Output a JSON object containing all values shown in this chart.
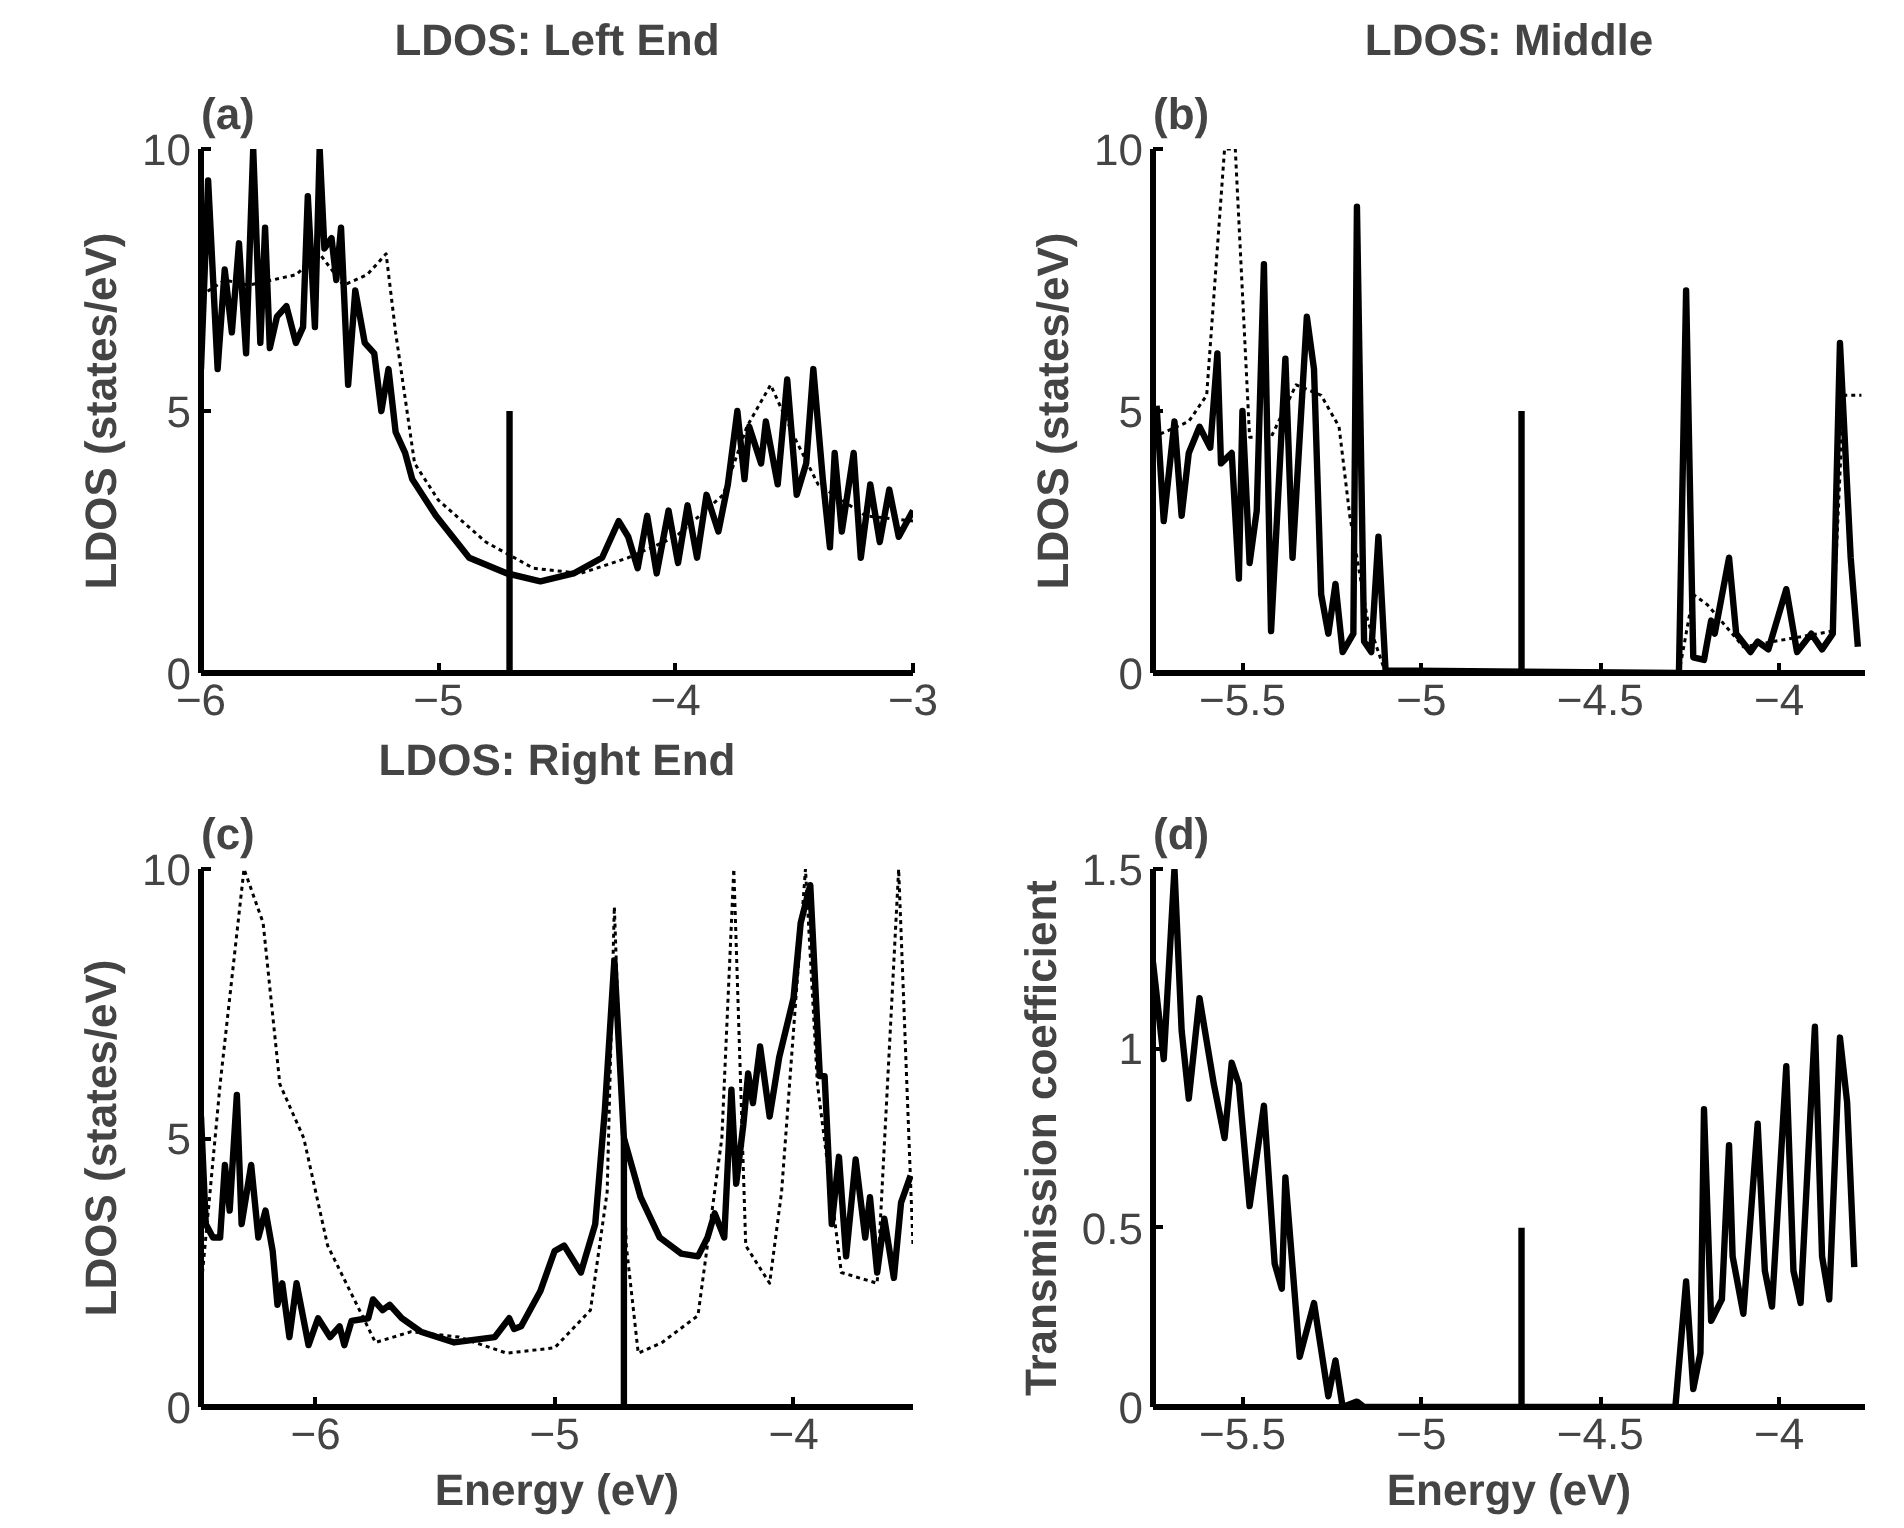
{
  "chart_data": [
    {
      "type": "line",
      "title": "LDOS: Left End",
      "annotations": [
        "(a)"
      ],
      "ylabel": "LDOS (states/eV)",
      "xlim": [
        -6,
        -3
      ],
      "ylim": [
        0,
        10
      ],
      "xticks": [
        -6,
        -5,
        -4,
        -3
      ],
      "yticks": [
        0,
        5,
        10
      ],
      "grid": false,
      "series": [
        {
          "color": "#000000",
          "line_style": "dotted",
          "x": [
            -6,
            -5.9,
            -5.8,
            -5.7,
            -5.6,
            -5.5,
            -5.4,
            -5.3,
            -5.22,
            -5.18,
            -5.1,
            -5.0,
            -4.8,
            -4.6,
            -4.4,
            -4.2,
            -4.0,
            -3.8,
            -3.7,
            -3.6,
            -3.5,
            -3.4,
            -3.2,
            -3.0
          ],
          "values": [
            7.2,
            7.5,
            7.4,
            7.5,
            7.6,
            8.0,
            7.4,
            7.6,
            8.0,
            6.5,
            4.0,
            3.3,
            2.5,
            2.0,
            1.9,
            2.2,
            2.6,
            3.4,
            4.7,
            5.5,
            4.5,
            3.6,
            3.0,
            2.9
          ]
        },
        {
          "color": "#000000",
          "line_style": "solid",
          "x": [
            -6,
            -5.97,
            -5.93,
            -5.9,
            -5.87,
            -5.84,
            -5.81,
            -5.78,
            -5.75,
            -5.73,
            -5.71,
            -5.68,
            -5.64,
            -5.6,
            -5.57,
            -5.55,
            -5.52,
            -5.5,
            -5.48,
            -5.45,
            -5.43,
            -5.41,
            -5.38,
            -5.35,
            -5.31,
            -5.27,
            -5.24,
            -5.21,
            -5.18,
            -5.14,
            -5.11,
            -5.01,
            -4.87,
            -4.71,
            -4.57,
            -4.43,
            -4.31,
            -4.24,
            -4.2,
            -4.16,
            -4.12,
            -4.08,
            -4.03,
            -3.99,
            -3.95,
            -3.91,
            -3.87,
            -3.82,
            -3.78,
            -3.74,
            -3.71,
            -3.69,
            -3.64,
            -3.62,
            -3.57,
            -3.53,
            -3.49,
            -3.45,
            -3.42,
            -3.38,
            -3.35,
            -3.33,
            -3.3,
            -3.25,
            -3.22,
            -3.18,
            -3.14,
            -3.1,
            -3.06,
            -3.0
          ],
          "values": [
            5.8,
            9.4,
            5.8,
            7.7,
            6.5,
            8.2,
            6.1,
            10,
            6.3,
            8.5,
            6.2,
            6.8,
            7.0,
            6.3,
            6.6,
            9.1,
            6.6,
            10,
            8.1,
            8.3,
            7.5,
            8.5,
            5.5,
            7.3,
            6.3,
            6.1,
            5.0,
            5.8,
            4.6,
            4.2,
            3.7,
            3.0,
            2.2,
            1.9,
            1.75,
            1.9,
            2.2,
            2.9,
            2.6,
            2.0,
            3.0,
            1.9,
            3.1,
            2.1,
            3.2,
            2.2,
            3.4,
            2.7,
            3.6,
            5.0,
            3.7,
            4.7,
            4.0,
            4.8,
            3.6,
            5.6,
            3.4,
            4.0,
            5.8,
            3.7,
            2.4,
            4.2,
            2.7,
            4.2,
            2.2,
            3.6,
            2.5,
            3.5,
            2.6,
            3.1
          ]
        },
        {
          "color": "#000000",
          "line_style": "solid",
          "x": [
            -4.7,
            -4.7
          ],
          "values": [
            0,
            5
          ]
        }
      ]
    },
    {
      "type": "line",
      "title": "LDOS: Middle",
      "annotations": [
        "(b)"
      ],
      "ylabel": "LDOS (states/eV)",
      "xlim": [
        -5.75,
        -3.76
      ],
      "ylim": [
        0,
        10
      ],
      "xticks": [
        -5.5,
        -5,
        -4.5,
        -4
      ],
      "yticks": [
        0,
        5,
        10
      ],
      "grid": false,
      "series": [
        {
          "color": "#000000",
          "line_style": "dotted",
          "x": [
            -5.75,
            -5.65,
            -5.6,
            -5.55,
            -5.52,
            -5.48,
            -5.42,
            -5.35,
            -5.28,
            -5.23,
            -5.2,
            -5.15,
            -5.1,
            -4.28,
            -4.24,
            -4.2,
            -4.1,
            -3.85,
            -3.82,
            -3.77
          ],
          "values": [
            4.5,
            4.8,
            5.3,
            10,
            10,
            4.5,
            4.5,
            5.5,
            5.3,
            4.7,
            3,
            1,
            0,
            0,
            1.5,
            1.3,
            0.5,
            0.8,
            5.3,
            5.3
          ]
        },
        {
          "color": "#000000",
          "line_style": "solid",
          "x": [
            -5.74,
            -5.72,
            -5.69,
            -5.67,
            -5.65,
            -5.62,
            -5.59,
            -5.57,
            -5.56,
            -5.53,
            -5.51,
            -5.5,
            -5.48,
            -5.46,
            -5.44,
            -5.42,
            -5.38,
            -5.36,
            -5.32,
            -5.3,
            -5.28,
            -5.26,
            -5.24,
            -5.22,
            -5.19,
            -5.18,
            -5.16,
            -5.14,
            -5.12,
            -5.1,
            -4.28,
            -4.26,
            -4.24,
            -4.21,
            -4.19,
            -4.18,
            -4.14,
            -4.12,
            -4.08,
            -4.06,
            -4.03,
            -3.98,
            -3.95,
            -3.91,
            -3.88,
            -3.85,
            -3.83,
            -3.8,
            -3.78
          ],
          "values": [
            5.1,
            2.9,
            4.8,
            3.0,
            4.2,
            4.7,
            4.3,
            6.1,
            4.0,
            4.2,
            1.8,
            5.0,
            2.1,
            3.1,
            7.8,
            0.8,
            6.0,
            2.2,
            6.8,
            5.8,
            1.5,
            0.75,
            1.7,
            0.4,
            0.75,
            8.9,
            0.6,
            0.4,
            2.6,
            0.05,
            0,
            7.3,
            0.3,
            0.25,
            1.0,
            0.75,
            2.2,
            0.75,
            0.4,
            0.6,
            0.45,
            1.6,
            0.4,
            0.75,
            0.45,
            0.75,
            6.3,
            2.2,
            0.5
          ]
        },
        {
          "color": "#000000",
          "line_style": "solid",
          "x": [
            -4.72,
            -4.72
          ],
          "values": [
            0,
            5
          ]
        }
      ]
    },
    {
      "type": "line",
      "title": "LDOS: Right End",
      "annotations": [
        "(c)"
      ],
      "xlabel": "Energy (eV)",
      "ylabel": "LDOS (states/eV)",
      "xlim": [
        -6.48,
        -3.5
      ],
      "ylim": [
        0,
        10
      ],
      "xticks": [
        -6,
        -5,
        -4
      ],
      "yticks": [
        0,
        5,
        10
      ],
      "grid": false,
      "series": [
        {
          "color": "#000000",
          "line_style": "dotted",
          "x": [
            -6.48,
            -6.4,
            -6.3,
            -6.22,
            -6.15,
            -6.05,
            -5.95,
            -5.85,
            -5.75,
            -5.6,
            -5.4,
            -5.2,
            -5.0,
            -4.85,
            -4.78,
            -4.75,
            -4.7,
            -4.65,
            -4.55,
            -4.4,
            -4.3,
            -4.25,
            -4.2,
            -4.1,
            -4.05,
            -3.95,
            -3.9,
            -3.8,
            -3.65,
            -3.56,
            -3.5
          ],
          "values": [
            2.2,
            6,
            10,
            9,
            6,
            5,
            3,
            2.1,
            1.2,
            1.4,
            1.3,
            1.0,
            1.1,
            1.8,
            4,
            9.3,
            3,
            1.0,
            1.2,
            1.7,
            5,
            10,
            3,
            2.3,
            4,
            10,
            6,
            2.5,
            2.3,
            10,
            3
          ]
        },
        {
          "color": "#000000",
          "line_style": "solid",
          "x": [
            -6.48,
            -6.46,
            -6.43,
            -6.4,
            -6.38,
            -6.36,
            -6.33,
            -6.31,
            -6.27,
            -6.24,
            -6.21,
            -6.18,
            -6.16,
            -6.14,
            -6.11,
            -6.08,
            -6.03,
            -5.99,
            -5.94,
            -5.9,
            -5.88,
            -5.85,
            -5.78,
            -5.76,
            -5.72,
            -5.69,
            -5.64,
            -5.56,
            -5.42,
            -5.25,
            -5.19,
            -5.17,
            -5.14,
            -5.06,
            -5.0,
            -4.96,
            -4.89,
            -4.83,
            -4.79,
            -4.75,
            -4.71,
            -4.64,
            -4.56,
            -4.47,
            -4.4,
            -4.36,
            -4.33,
            -4.29,
            -4.26,
            -4.24,
            -4.21,
            -4.19,
            -4.17,
            -4.14,
            -4.1,
            -4.06,
            -4.0,
            -3.97,
            -3.93,
            -3.89,
            -3.87,
            -3.84,
            -3.81,
            -3.78,
            -3.74,
            -3.7,
            -3.68,
            -3.65,
            -3.62,
            -3.58,
            -3.55,
            -3.51
          ],
          "values": [
            5.4,
            3.4,
            3.15,
            3.15,
            4.5,
            3.65,
            5.8,
            3.4,
            4.5,
            3.15,
            3.65,
            2.9,
            1.9,
            2.3,
            1.3,
            2.3,
            1.15,
            1.65,
            1.3,
            1.5,
            1.15,
            1.6,
            1.65,
            2.0,
            1.8,
            1.9,
            1.65,
            1.4,
            1.2,
            1.3,
            1.65,
            1.45,
            1.5,
            2.15,
            2.9,
            3.0,
            2.5,
            3.4,
            5.5,
            8.3,
            5.0,
            3.9,
            3.15,
            2.85,
            2.8,
            3.15,
            3.6,
            3.15,
            5.9,
            4.15,
            5.25,
            6.2,
            5.65,
            6.7,
            5.4,
            6.5,
            7.6,
            9.0,
            9.7,
            6.15,
            6.15,
            3.4,
            4.65,
            2.8,
            4.6,
            3.15,
            3.9,
            2.5,
            3.5,
            2.4,
            3.8,
            4.3
          ]
        },
        {
          "color": "#000000",
          "line_style": "solid",
          "x": [
            -4.71,
            -4.71
          ],
          "values": [
            0,
            5
          ]
        }
      ]
    },
    {
      "type": "line",
      "annotations": [
        "(d)"
      ],
      "xlabel": "Energy (eV)",
      "ylabel": "Transmission coefficient",
      "xlim": [
        -5.75,
        -3.76
      ],
      "ylim": [
        0,
        1.5
      ],
      "xticks": [
        -5.5,
        -5,
        -4.5,
        -4
      ],
      "yticks": [
        0,
        0.5,
        1,
        1.5
      ],
      "grid": false,
      "series": [
        {
          "color": "#000000",
          "line_style": "solid",
          "x": [
            -5.75,
            -5.72,
            -5.69,
            -5.67,
            -5.65,
            -5.62,
            -5.58,
            -5.55,
            -5.53,
            -5.51,
            -5.48,
            -5.44,
            -5.41,
            -5.39,
            -5.38,
            -5.34,
            -5.3,
            -5.26,
            -5.24,
            -5.22,
            -5.18,
            -5.16,
            -4.29,
            -4.26,
            -4.24,
            -4.22,
            -4.21,
            -4.19,
            -4.16,
            -4.14,
            -4.13,
            -4.1,
            -4.06,
            -4.04,
            -4.02,
            -3.98,
            -3.96,
            -3.94,
            -3.9,
            -3.88,
            -3.86,
            -3.83,
            -3.81,
            -3.79
          ],
          "values": [
            1.24,
            0.97,
            1.5,
            1.05,
            0.86,
            1.14,
            0.9,
            0.75,
            0.96,
            0.9,
            0.56,
            0.84,
            0.4,
            0.33,
            0.64,
            0.14,
            0.29,
            0.03,
            0.13,
            0,
            0.015,
            0,
            0,
            0.35,
            0.05,
            0.15,
            0.83,
            0.24,
            0.3,
            0.73,
            0.42,
            0.26,
            0.79,
            0.38,
            0.28,
            0.95,
            0.38,
            0.29,
            1.06,
            0.42,
            0.3,
            1.03,
            0.85,
            0.39
          ]
        },
        {
          "color": "#000000",
          "line_style": "solid",
          "x": [
            -4.72,
            -4.72
          ],
          "values": [
            0,
            0.5
          ]
        }
      ]
    }
  ]
}
